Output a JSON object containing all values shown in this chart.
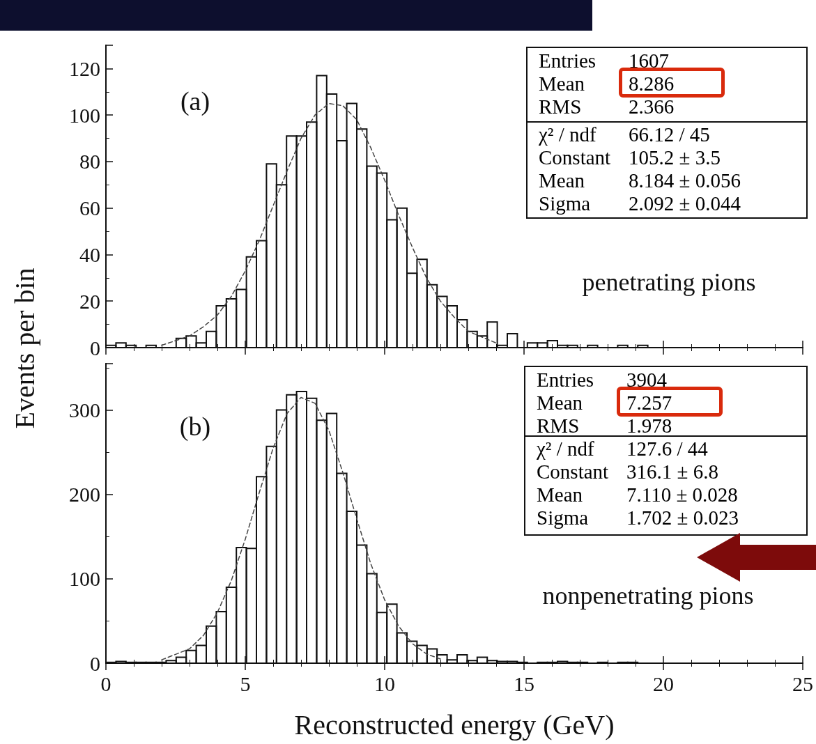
{
  "chart_data": [
    {
      "type": "histogram",
      "ylabel": "Events per bin",
      "xlim": [
        0,
        25
      ],
      "xticks": [
        0,
        5,
        10,
        15,
        20,
        25
      ],
      "ylim": [
        0,
        130
      ],
      "yticks": [
        0,
        20,
        40,
        60,
        80,
        100,
        120
      ],
      "tick_labels": "y",
      "grid": false,
      "bins": [
        0,
        0.36,
        0.72,
        1.08,
        1.44,
        1.8,
        2.16,
        2.52,
        2.88,
        3.24,
        3.6,
        3.96,
        4.32,
        4.68,
        5.04,
        5.4,
        5.76,
        6.12,
        6.48,
        6.84,
        7.2,
        7.56,
        7.92,
        8.28,
        8.64,
        9,
        9.36,
        9.72,
        10.08,
        10.44,
        10.8,
        11.16,
        11.52,
        11.88,
        12.24,
        12.6,
        12.96,
        13.32,
        13.68,
        14.04,
        14.4,
        14.76,
        15.12,
        15.48,
        15.84,
        16.2,
        16.56,
        16.92,
        17.28,
        17.64,
        18,
        18.36,
        18.72,
        19.08,
        19.44,
        19.8,
        20.16,
        20.52,
        20.88,
        21.24,
        21.6,
        21.96,
        22.32,
        22.68,
        23.04,
        23.4,
        23.76,
        24.12,
        24.48,
        24.84
      ],
      "annotations": [
        "(a)",
        "penetrating pions",
        "Entries",
        "1607",
        "Mean",
        "8.286",
        "RMS",
        "2.366",
        "χ² / ndf",
        "66.12 / 45",
        "Constant",
        "105.2 ± 3.5",
        "Mean",
        "8.184 ± 0.056",
        "Sigma",
        "2.092 ± 0.044"
      ],
      "series": [
        {
          "color": "#111111",
          "values": [
            1,
            2,
            1,
            0,
            1,
            0,
            0,
            4,
            5,
            2,
            7,
            18,
            21,
            25,
            39,
            46,
            79,
            70,
            91,
            91,
            97,
            117,
            109,
            89,
            105,
            94,
            78,
            75,
            55,
            60,
            32,
            38,
            27,
            22,
            18,
            12,
            7,
            5,
            11,
            1,
            6,
            0,
            2,
            2,
            3,
            1,
            1,
            0,
            1,
            0,
            0,
            1,
            0,
            1,
            0,
            0,
            0,
            0,
            0,
            0,
            0,
            0,
            0,
            0,
            0,
            0,
            0,
            0,
            0
          ]
        },
        {
          "type": "line",
          "color": "#444444",
          "line_style": "dashed",
          "marker": "none",
          "x": [
            2,
            3,
            3.5,
            4,
            4.5,
            5,
            5.5,
            6,
            6.5,
            7,
            7.5,
            8,
            8.5,
            9,
            9.5,
            10,
            10.5,
            11,
            11.5,
            12,
            12.5,
            13,
            14
          ],
          "values": [
            1,
            5,
            9,
            14,
            22,
            33,
            46,
            61,
            76,
            90,
            100,
            105,
            104,
            98,
            86,
            72,
            57,
            43,
            30,
            20,
            13,
            7,
            2
          ]
        }
      ]
    },
    {
      "type": "histogram",
      "xlabel": "Reconstructed energy (GeV)",
      "xlim": [
        0,
        25
      ],
      "xticks": [
        0,
        5,
        10,
        15,
        20,
        25
      ],
      "ylim": [
        0,
        355
      ],
      "yticks": [
        0,
        100,
        200,
        300
      ],
      "grid": false,
      "bins": [
        0,
        0.36,
        0.72,
        1.08,
        1.44,
        1.8,
        2.16,
        2.52,
        2.88,
        3.24,
        3.6,
        3.96,
        4.32,
        4.68,
        5.04,
        5.4,
        5.76,
        6.12,
        6.48,
        6.84,
        7.2,
        7.56,
        7.92,
        8.28,
        8.64,
        9,
        9.36,
        9.72,
        10.08,
        10.44,
        10.8,
        11.16,
        11.52,
        11.88,
        12.24,
        12.6,
        12.96,
        13.32,
        13.68,
        14.04,
        14.4,
        14.76,
        15.12,
        15.48,
        15.84,
        16.2,
        16.56,
        16.92,
        17.28,
        17.64,
        18,
        18.36,
        18.72,
        19.08,
        19.44,
        19.8,
        20.16,
        20.52,
        20.88,
        21.24,
        21.6,
        21.96,
        22.32,
        22.68,
        23.04,
        23.4,
        23.76,
        24.12,
        24.48,
        24.84
      ],
      "annotations": [
        "(b)",
        "nonpenetrating pions",
        "Entries",
        "3904",
        "Mean",
        "7.257",
        "RMS",
        "1.978",
        "χ² / ndf",
        "127.6 / 44",
        "Constant",
        "316.1 ± 6.8",
        "Mean",
        "7.110 ± 0.028",
        "Sigma",
        "1.702 ± 0.023"
      ],
      "series": [
        {
          "color": "#111111",
          "values": [
            1,
            2,
            1,
            1,
            1,
            1,
            3,
            7,
            15,
            21,
            44,
            61,
            90,
            137,
            136,
            221,
            257,
            300,
            318,
            322,
            314,
            288,
            296,
            225,
            180,
            140,
            106,
            60,
            70,
            36,
            26,
            21,
            17,
            10,
            4,
            10,
            3,
            7,
            3,
            2,
            2,
            1,
            0,
            1,
            1,
            2,
            1,
            1,
            0,
            1,
            0,
            1,
            1,
            0,
            0,
            0,
            0,
            0,
            0,
            0,
            0,
            0,
            0,
            0,
            0,
            0,
            0,
            0,
            0
          ]
        },
        {
          "type": "line",
          "color": "#444444",
          "line_style": "dashed",
          "marker": "none",
          "x": [
            2,
            3,
            3.5,
            4,
            4.5,
            5,
            5.5,
            6,
            6.5,
            7,
            7.5,
            8,
            8.5,
            9,
            9.5,
            10,
            10.5,
            11,
            11.5,
            12
          ],
          "values": [
            4,
            17,
            33,
            60,
            98,
            147,
            202,
            255,
            296,
            315,
            308,
            276,
            226,
            171,
            118,
            75,
            44,
            23,
            11,
            5
          ]
        }
      ]
    }
  ]
}
